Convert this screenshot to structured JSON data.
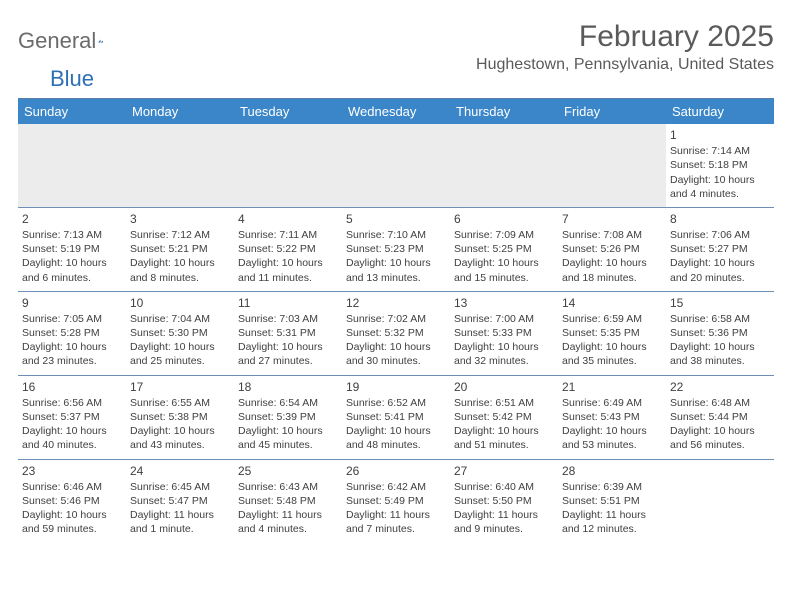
{
  "logo": {
    "text1": "General",
    "text2": "Blue"
  },
  "title": "February 2025",
  "location": "Hughestown, Pennsylvania, United States",
  "colors": {
    "header_bg": "#3a86c8",
    "header_text": "#ffffff",
    "rule": "#6d8fb5",
    "text": "#404040",
    "blank_bg": "#ececec",
    "logo_blue": "#2f6fb3"
  },
  "day_headers": [
    "Sunday",
    "Monday",
    "Tuesday",
    "Wednesday",
    "Thursday",
    "Friday",
    "Saturday"
  ],
  "weeks": [
    [
      null,
      null,
      null,
      null,
      null,
      null,
      {
        "n": "1",
        "sr": "7:14 AM",
        "ss": "5:18 PM",
        "dl": "10 hours and 4 minutes."
      }
    ],
    [
      {
        "n": "2",
        "sr": "7:13 AM",
        "ss": "5:19 PM",
        "dl": "10 hours and 6 minutes."
      },
      {
        "n": "3",
        "sr": "7:12 AM",
        "ss": "5:21 PM",
        "dl": "10 hours and 8 minutes."
      },
      {
        "n": "4",
        "sr": "7:11 AM",
        "ss": "5:22 PM",
        "dl": "10 hours and 11 minutes."
      },
      {
        "n": "5",
        "sr": "7:10 AM",
        "ss": "5:23 PM",
        "dl": "10 hours and 13 minutes."
      },
      {
        "n": "6",
        "sr": "7:09 AM",
        "ss": "5:25 PM",
        "dl": "10 hours and 15 minutes."
      },
      {
        "n": "7",
        "sr": "7:08 AM",
        "ss": "5:26 PM",
        "dl": "10 hours and 18 minutes."
      },
      {
        "n": "8",
        "sr": "7:06 AM",
        "ss": "5:27 PM",
        "dl": "10 hours and 20 minutes."
      }
    ],
    [
      {
        "n": "9",
        "sr": "7:05 AM",
        "ss": "5:28 PM",
        "dl": "10 hours and 23 minutes."
      },
      {
        "n": "10",
        "sr": "7:04 AM",
        "ss": "5:30 PM",
        "dl": "10 hours and 25 minutes."
      },
      {
        "n": "11",
        "sr": "7:03 AM",
        "ss": "5:31 PM",
        "dl": "10 hours and 27 minutes."
      },
      {
        "n": "12",
        "sr": "7:02 AM",
        "ss": "5:32 PM",
        "dl": "10 hours and 30 minutes."
      },
      {
        "n": "13",
        "sr": "7:00 AM",
        "ss": "5:33 PM",
        "dl": "10 hours and 32 minutes."
      },
      {
        "n": "14",
        "sr": "6:59 AM",
        "ss": "5:35 PM",
        "dl": "10 hours and 35 minutes."
      },
      {
        "n": "15",
        "sr": "6:58 AM",
        "ss": "5:36 PM",
        "dl": "10 hours and 38 minutes."
      }
    ],
    [
      {
        "n": "16",
        "sr": "6:56 AM",
        "ss": "5:37 PM",
        "dl": "10 hours and 40 minutes."
      },
      {
        "n": "17",
        "sr": "6:55 AM",
        "ss": "5:38 PM",
        "dl": "10 hours and 43 minutes."
      },
      {
        "n": "18",
        "sr": "6:54 AM",
        "ss": "5:39 PM",
        "dl": "10 hours and 45 minutes."
      },
      {
        "n": "19",
        "sr": "6:52 AM",
        "ss": "5:41 PM",
        "dl": "10 hours and 48 minutes."
      },
      {
        "n": "20",
        "sr": "6:51 AM",
        "ss": "5:42 PM",
        "dl": "10 hours and 51 minutes."
      },
      {
        "n": "21",
        "sr": "6:49 AM",
        "ss": "5:43 PM",
        "dl": "10 hours and 53 minutes."
      },
      {
        "n": "22",
        "sr": "6:48 AM",
        "ss": "5:44 PM",
        "dl": "10 hours and 56 minutes."
      }
    ],
    [
      {
        "n": "23",
        "sr": "6:46 AM",
        "ss": "5:46 PM",
        "dl": "10 hours and 59 minutes."
      },
      {
        "n": "24",
        "sr": "6:45 AM",
        "ss": "5:47 PM",
        "dl": "11 hours and 1 minute."
      },
      {
        "n": "25",
        "sr": "6:43 AM",
        "ss": "5:48 PM",
        "dl": "11 hours and 4 minutes."
      },
      {
        "n": "26",
        "sr": "6:42 AM",
        "ss": "5:49 PM",
        "dl": "11 hours and 7 minutes."
      },
      {
        "n": "27",
        "sr": "6:40 AM",
        "ss": "5:50 PM",
        "dl": "11 hours and 9 minutes."
      },
      {
        "n": "28",
        "sr": "6:39 AM",
        "ss": "5:51 PM",
        "dl": "11 hours and 12 minutes."
      },
      null
    ]
  ],
  "labels": {
    "sunrise": "Sunrise:",
    "sunset": "Sunset:",
    "daylight": "Daylight:"
  }
}
